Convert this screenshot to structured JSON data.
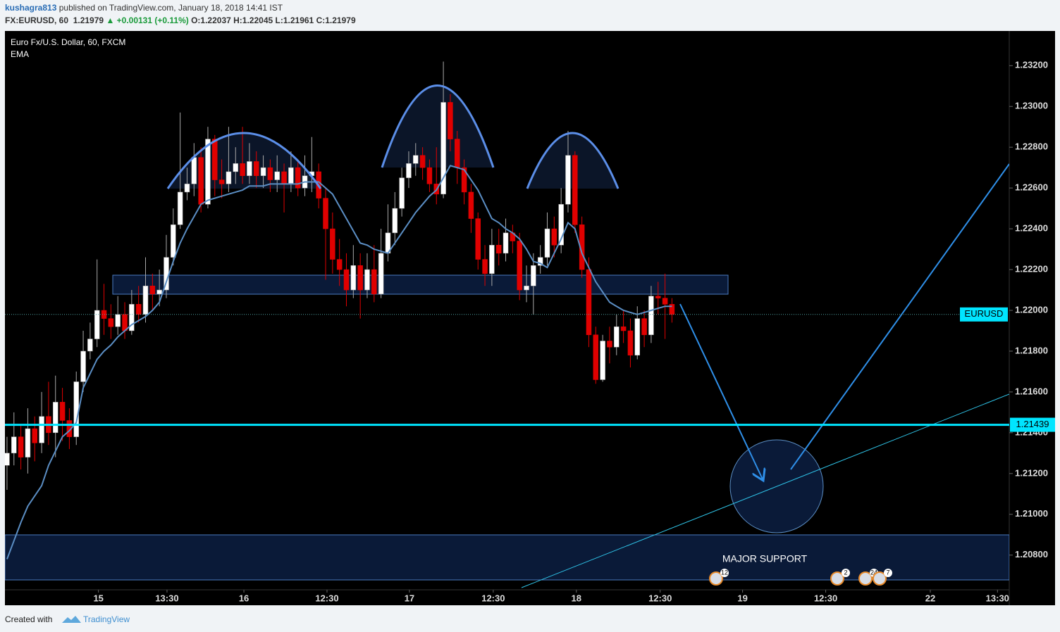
{
  "header": {
    "author": "kushagra813",
    "published": "published on TradingView.com, January 18, 2018 14:41 IST",
    "symbol": "FX:EURUSD, 60",
    "last": "1.21979",
    "change": "▲ +0.00131 (+0.11%)",
    "open": "O:1.22037",
    "high": "H:1.22045",
    "low": "L:1.21961",
    "close": "C:1.21979"
  },
  "footer": {
    "created": "Created with",
    "brand": "TradingView"
  },
  "chart_data": {
    "type": "candlestick",
    "title": "Euro Fx/U.S. Dollar, 60, FXCM",
    "open": [
      1.2124,
      1.213,
      1.2138,
      1.2128,
      1.2142,
      1.2135,
      1.2148,
      1.214,
      1.2155,
      1.2146,
      1.2138,
      1.2165,
      1.218,
      1.2186,
      1.22,
      1.2196,
      1.2192,
      1.2198,
      1.219,
      1.2203,
      1.2198,
      1.2212,
      1.2208,
      1.221,
      1.2226,
      1.2242,
      1.2258,
      1.2262,
      1.2275,
      1.2252,
      1.2284,
      1.2264,
      1.2262,
      1.2268,
      1.2272,
      1.2266,
      1.2273,
      1.2266,
      1.227,
      1.2264,
      1.2268,
      1.2262,
      1.227,
      1.226,
      1.2266,
      1.2268,
      1.2255,
      1.224,
      1.2225,
      1.222,
      1.221,
      1.2222,
      1.221,
      1.222,
      1.2208,
      1.2228,
      1.2238,
      1.225,
      1.2265,
      1.2272,
      1.2276,
      1.227,
      1.2262,
      1.2257,
      1.2302,
      1.2284,
      1.227,
      1.2258,
      1.2245,
      1.2225,
      1.2218,
      1.2232,
      1.2228,
      1.2238,
      1.2234,
      1.221,
      1.2212,
      1.2222,
      1.2226,
      1.224,
      1.2232,
      1.2252,
      1.2276,
      1.2242,
      1.222,
      1.2188,
      1.2166,
      1.2185,
      1.2182,
      1.2192,
      1.219,
      1.2178,
      1.2196,
      1.2188,
      1.2207,
      1.2206,
      1.2203
    ],
    "high": [
      1.2138,
      1.215,
      1.2144,
      1.2152,
      1.2148,
      1.216,
      1.2165,
      1.2168,
      1.2162,
      1.2152,
      1.217,
      1.219,
      1.2194,
      1.2225,
      1.2213,
      1.2203,
      1.2207,
      1.2204,
      1.221,
      1.2212,
      1.2226,
      1.2218,
      1.222,
      1.2237,
      1.225,
      1.2297,
      1.227,
      1.2282,
      1.228,
      1.229,
      1.2286,
      1.2274,
      1.229,
      1.228,
      1.229,
      1.2282,
      1.2278,
      1.2276,
      1.2274,
      1.2276,
      1.2272,
      1.2278,
      1.2274,
      1.2276,
      1.2285,
      1.2272,
      1.226,
      1.2248,
      1.2235,
      1.2228,
      1.2232,
      1.2228,
      1.2228,
      1.2232,
      1.224,
      1.2252,
      1.2258,
      1.227,
      1.2278,
      1.2282,
      1.228,
      1.2274,
      1.228,
      1.2322,
      1.2306,
      1.2288,
      1.2274,
      1.2262,
      1.2248,
      1.2232,
      1.224,
      1.224,
      1.2245,
      1.2242,
      1.2238,
      1.2222,
      1.2228,
      1.2232,
      1.2248,
      1.2246,
      1.226,
      1.2288,
      1.2278,
      1.2246,
      1.2226,
      1.2192,
      1.2188,
      1.2192,
      1.2198,
      1.22,
      1.2196,
      1.2202,
      1.22,
      1.2212,
      1.2214,
      1.2218,
      1.2206
    ],
    "low": [
      1.2112,
      1.2124,
      1.2122,
      1.212,
      1.2126,
      1.213,
      1.2134,
      1.2128,
      1.2136,
      1.2132,
      1.2134,
      1.216,
      1.2176,
      1.2182,
      1.2188,
      1.2186,
      1.2188,
      1.2186,
      1.2188,
      1.2194,
      1.2194,
      1.22,
      1.2202,
      1.2206,
      1.2222,
      1.224,
      1.2254,
      1.2256,
      1.2248,
      1.225,
      1.2256,
      1.2255,
      1.2258,
      1.2262,
      1.2262,
      1.2262,
      1.226,
      1.226,
      1.2258,
      1.2258,
      1.2248,
      1.2258,
      1.2256,
      1.2256,
      1.2258,
      1.225,
      1.2215,
      1.2218,
      1.2212,
      1.2202,
      1.2206,
      1.2196,
      1.2206,
      1.2204,
      1.2206,
      1.2224,
      1.2232,
      1.2246,
      1.226,
      1.2266,
      1.2264,
      1.2258,
      1.2252,
      1.2255,
      1.2278,
      1.2262,
      1.2252,
      1.2238,
      1.222,
      1.2212,
      1.2212,
      1.2222,
      1.2224,
      1.2228,
      1.2205,
      1.2204,
      1.2198,
      1.2218,
      1.2222,
      1.2226,
      1.2228,
      1.2248,
      1.2238,
      1.2216,
      1.2182,
      1.2164,
      1.2165,
      1.2174,
      1.2178,
      1.2184,
      1.2172,
      1.2176,
      1.2182,
      1.2184,
      1.2198,
      1.2186,
      1.2194
    ],
    "close": [
      1.213,
      1.2138,
      1.2128,
      1.2142,
      1.2135,
      1.2148,
      1.214,
      1.2155,
      1.2146,
      1.2138,
      1.2165,
      1.218,
      1.2186,
      1.22,
      1.2196,
      1.2192,
      1.2198,
      1.219,
      1.2203,
      1.2198,
      1.2212,
      1.2208,
      1.221,
      1.2226,
      1.2242,
      1.2258,
      1.2262,
      1.2275,
      1.2252,
      1.2284,
      1.2264,
      1.2262,
      1.2268,
      1.2272,
      1.2266,
      1.2273,
      1.2266,
      1.227,
      1.2264,
      1.2268,
      1.2262,
      1.227,
      1.226,
      1.2266,
      1.2268,
      1.2255,
      1.224,
      1.2225,
      1.222,
      1.221,
      1.2222,
      1.221,
      1.222,
      1.2208,
      1.2228,
      1.2238,
      1.225,
      1.2265,
      1.2272,
      1.2276,
      1.227,
      1.2262,
      1.2257,
      1.2302,
      1.2284,
      1.227,
      1.2258,
      1.2245,
      1.2225,
      1.2218,
      1.2232,
      1.2228,
      1.2238,
      1.2234,
      1.221,
      1.2212,
      1.2222,
      1.2226,
      1.224,
      1.2232,
      1.2252,
      1.2276,
      1.2242,
      1.222,
      1.2188,
      1.2166,
      1.2185,
      1.2182,
      1.2192,
      1.219,
      1.2178,
      1.2196,
      1.2188,
      1.2207,
      1.2206,
      1.2203,
      1.2198
    ],
    "up_color": "#ffffff",
    "down_color": "#e00000",
    "ema": {
      "name": "EMA",
      "color": "#5b8ec4",
      "values": [
        1.2078,
        1.2087,
        1.2096,
        1.2104,
        1.2109,
        1.2114,
        1.2124,
        1.2131,
        1.2138,
        1.2141,
        1.2145,
        1.2162,
        1.2169,
        1.2176,
        1.218,
        1.2183,
        1.2187,
        1.219,
        1.2193,
        1.2195,
        1.2197,
        1.22,
        1.2204,
        1.2214,
        1.2224,
        1.2233,
        1.224,
        1.2246,
        1.2252,
        1.2254,
        1.2255,
        1.2256,
        1.2257,
        1.2258,
        1.2259,
        1.2261,
        1.2261,
        1.2261,
        1.2262,
        1.2262,
        1.2262,
        1.2262,
        1.2262,
        1.2263,
        1.2263,
        1.2263,
        1.226,
        1.2257,
        1.2251,
        1.2245,
        1.2239,
        1.2233,
        1.2232,
        1.223,
        1.2229,
        1.2228,
        1.2233,
        1.2238,
        1.2243,
        1.2248,
        1.2252,
        1.2256,
        1.2259,
        1.2265,
        1.2271,
        1.227,
        1.2269,
        1.2264,
        1.2259,
        1.2252,
        1.2245,
        1.2243,
        1.224,
        1.2238,
        1.2235,
        1.223,
        1.2224,
        1.2223,
        1.2221,
        1.2228,
        1.2235,
        1.2243,
        1.224,
        1.2228,
        1.2221,
        1.2214,
        1.2209,
        1.2204,
        1.2202,
        1.22,
        1.2199,
        1.2198,
        1.2199,
        1.22,
        1.2201,
        1.2202,
        1.2202
      ]
    },
    "symbol_badge": "EURUSD",
    "hline": {
      "value": 1.21439,
      "color": "#00e5ff"
    },
    "annotation": "MAJOR SUPPORT",
    "events": [
      "12",
      "2",
      "24",
      "7"
    ],
    "xlim": [
      -0.3,
      144.7
    ],
    "xticks": [
      {
        "value": 13.2,
        "label": "15"
      },
      {
        "value": 23.1,
        "label": "13:30"
      },
      {
        "value": 34.2,
        "label": "16"
      },
      {
        "value": 46.2,
        "label": "12:30"
      },
      {
        "value": 58.1,
        "label": "17"
      },
      {
        "value": 70.2,
        "label": "12:30"
      },
      {
        "value": 82.2,
        "label": "18"
      },
      {
        "value": 94.3,
        "label": "12:30"
      },
      {
        "value": 106.2,
        "label": "19"
      },
      {
        "value": 118.2,
        "label": "12:30"
      },
      {
        "value": 133.3,
        "label": "22"
      },
      {
        "value": 143.0,
        "label": "13:30"
      }
    ],
    "ylim": [
      1.2063,
      1.2337
    ],
    "yticks": [
      {
        "value": 1.232,
        "label": "1.23200"
      },
      {
        "value": 1.23,
        "label": "1.23000"
      },
      {
        "value": 1.228,
        "label": "1.22800"
      },
      {
        "value": 1.226,
        "label": "1.22600"
      },
      {
        "value": 1.224,
        "label": "1.22400"
      },
      {
        "value": 1.222,
        "label": "1.22200"
      },
      {
        "value": 1.22,
        "label": "1.22000"
      },
      {
        "value": 1.218,
        "label": "1.21800"
      },
      {
        "value": 1.216,
        "label": "1.21600"
      },
      {
        "value": 1.214,
        "label": "1.21400"
      },
      {
        "value": 1.212,
        "label": "1.21200"
      },
      {
        "value": 1.21,
        "label": "1.21000"
      },
      {
        "value": 1.208,
        "label": "1.20800"
      }
    ]
  }
}
